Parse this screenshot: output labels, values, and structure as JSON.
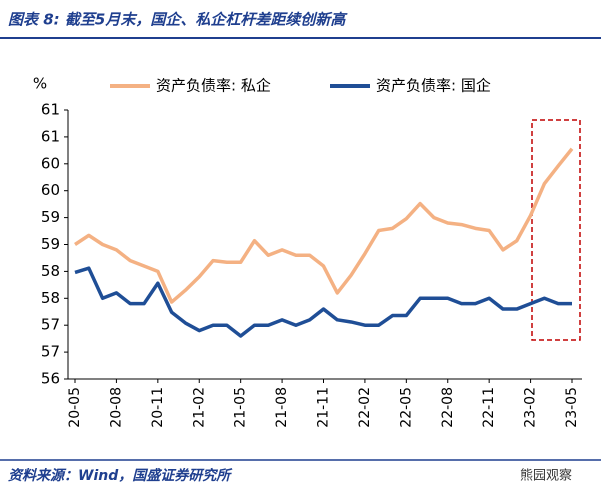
{
  "chart_data": {
    "type": "line",
    "title": "图表 8: 截至5月末，国企、私企杠杆差距续创新高",
    "source": "资料来源：Wind，国盛证券研究所",
    "watermark": "熊园观察",
    "y_label": "%",
    "categories": [
      "20-05",
      null,
      null,
      "20-08",
      null,
      null,
      "20-11",
      null,
      null,
      "21-02",
      null,
      null,
      "21-05",
      null,
      null,
      "21-08",
      null,
      null,
      "21-11",
      null,
      null,
      "22-02",
      null,
      null,
      "22-05",
      null,
      null,
      "22-08",
      null,
      null,
      "22-11",
      null,
      null,
      "23-02",
      null,
      null,
      "23-05"
    ],
    "series": [
      {
        "name": "资产负债率: 私企",
        "color": "#f4b183",
        "values": [
          58.5,
          58.67,
          58.5,
          58.4,
          58.2,
          58.1,
          58.0,
          57.43,
          57.65,
          57.9,
          58.2,
          58.17,
          58.17,
          58.57,
          58.3,
          58.4,
          58.3,
          58.3,
          58.1,
          57.6,
          57.93,
          58.33,
          58.76,
          58.8,
          58.98,
          59.26,
          59.0,
          58.9,
          58.87,
          58.8,
          58.76,
          58.4,
          58.57,
          59.04,
          59.63,
          59.96,
          60.28
        ]
      },
      {
        "name": "资产负债率: 国企",
        "color": "#1f4e96",
        "values": [
          57.98,
          58.06,
          57.5,
          57.6,
          57.4,
          57.4,
          57.78,
          57.24,
          57.04,
          56.9,
          57.0,
          57.0,
          56.8,
          57.0,
          57.0,
          57.1,
          57.0,
          57.1,
          57.3,
          57.1,
          57.06,
          57.0,
          57.0,
          57.18,
          57.18,
          57.5,
          57.5,
          57.5,
          57.4,
          57.4,
          57.5,
          57.3,
          57.3,
          57.4,
          57.5,
          57.4,
          57.4
        ]
      }
    ],
    "ylim": [
      56,
      61
    ],
    "yticks": [
      56,
      {
        "value": 56.5,
        "label": "57"
      },
      57,
      {
        "value": 57.5,
        "label": "58"
      },
      58,
      {
        "value": 58.5,
        "label": "59"
      },
      59,
      {
        "value": 59.5,
        "label": "60"
      },
      60,
      {
        "value": 60.5,
        "label": "61"
      },
      61
    ],
    "grid": false,
    "legend": "top"
  }
}
